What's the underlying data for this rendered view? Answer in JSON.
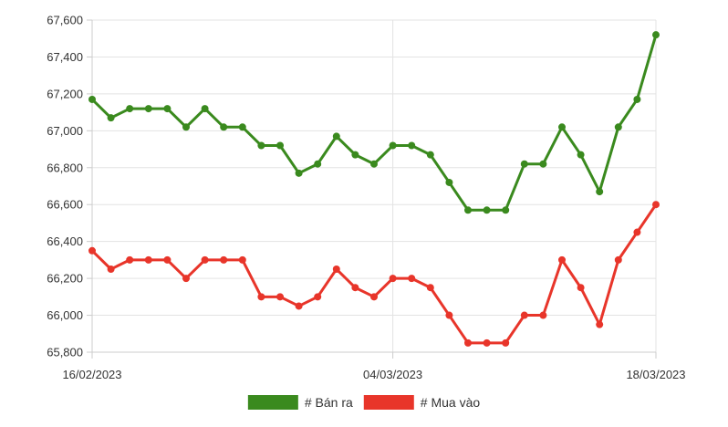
{
  "chart_data": {
    "type": "line",
    "x": [
      "16/02/2023",
      "17/02/2023",
      "18/02/2023",
      "19/02/2023",
      "20/02/2023",
      "21/02/2023",
      "22/02/2023",
      "23/02/2023",
      "24/02/2023",
      "25/02/2023",
      "26/02/2023",
      "27/02/2023",
      "28/02/2023",
      "01/03/2023",
      "02/03/2023",
      "03/03/2023",
      "04/03/2023",
      "05/03/2023",
      "06/03/2023",
      "07/03/2023",
      "08/03/2023",
      "09/03/2023",
      "10/03/2023",
      "11/03/2023",
      "12/03/2023",
      "13/03/2023",
      "14/03/2023",
      "15/03/2023",
      "16/03/2023",
      "17/03/2023",
      "18/03/2023"
    ],
    "x_tick_labels": [
      "16/02/2023",
      "04/03/2023",
      "18/03/2023"
    ],
    "series": [
      {
        "name": "# Bán ra",
        "color": "#3a8a1e",
        "values": [
          67170,
          67070,
          67120,
          67120,
          67120,
          67020,
          67120,
          67020,
          67020,
          66920,
          66920,
          66770,
          66820,
          66970,
          66870,
          66820,
          66920,
          66920,
          66870,
          66720,
          66570,
          66570,
          66570,
          66820,
          66820,
          67020,
          66870,
          66670,
          67020,
          67170,
          67520
        ]
      },
      {
        "name": "# Mua vào",
        "color": "#e8352a",
        "values": [
          66350,
          66250,
          66300,
          66300,
          66300,
          66200,
          66300,
          66300,
          66300,
          66100,
          66100,
          66050,
          66100,
          66250,
          66150,
          66100,
          66200,
          66200,
          66150,
          66000,
          65850,
          65850,
          65850,
          66000,
          66000,
          66300,
          66150,
          65950,
          66300,
          66450,
          66600
        ]
      }
    ],
    "y_ticks": [
      "65,800",
      "66,000",
      "66,200",
      "66,400",
      "66,600",
      "66,800",
      "67,000",
      "67,200",
      "67,400",
      "67,600"
    ],
    "ylim": [
      65800,
      67600
    ],
    "grid": true,
    "legend_position": "bottom"
  }
}
